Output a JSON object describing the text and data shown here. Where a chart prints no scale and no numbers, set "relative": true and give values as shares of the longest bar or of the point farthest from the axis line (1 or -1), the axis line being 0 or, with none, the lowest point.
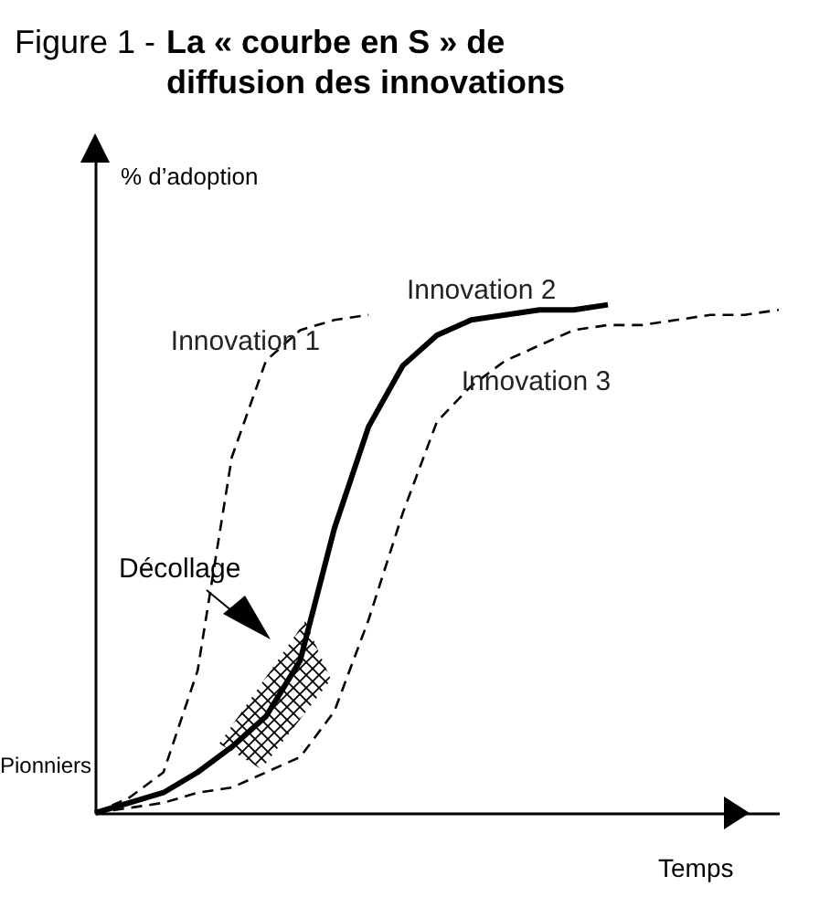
{
  "chart_data": {
    "type": "line",
    "title": "Figure 1 -",
    "subtitle": "La « courbe en S » de diffusion des innovations",
    "xlabel": "Temps",
    "ylabel": "% d’adoption",
    "relative": true,
    "categories": [
      null,
      null,
      null,
      null,
      null,
      null,
      null,
      null,
      null,
      null,
      null,
      null,
      null,
      null,
      null,
      null,
      null,
      null,
      null,
      null,
      null
    ],
    "series": [
      {
        "name": "Innovation 1",
        "color": "#000000",
        "line_style": "dashed",
        "values": [
          0,
          0.03,
          0.08,
          0.28,
          0.7,
          0.89,
          0.95,
          0.97,
          0.98,
          null,
          null,
          null,
          null,
          null,
          null,
          null,
          null,
          null,
          null,
          null,
          null
        ]
      },
      {
        "name": "Innovation 2",
        "color": "#000000",
        "line_style": "solid",
        "values": [
          0,
          0.02,
          0.04,
          0.08,
          0.13,
          0.19,
          0.3,
          0.56,
          0.76,
          0.88,
          0.94,
          0.97,
          0.98,
          0.99,
          0.99,
          1,
          null,
          null,
          null,
          null,
          null
        ]
      },
      {
        "name": "Innovation 3",
        "color": "#000000",
        "line_style": "dashed",
        "values": [
          0,
          0.01,
          0.02,
          0.04,
          0.05,
          0.08,
          0.11,
          0.2,
          0.38,
          0.59,
          0.77,
          0.84,
          0.89,
          0.92,
          0.95,
          0.96,
          0.96,
          0.97,
          0.98,
          0.98,
          0.99
        ]
      }
    ],
    "annotations": [
      "Décollage",
      "Pionniers"
    ]
  }
}
